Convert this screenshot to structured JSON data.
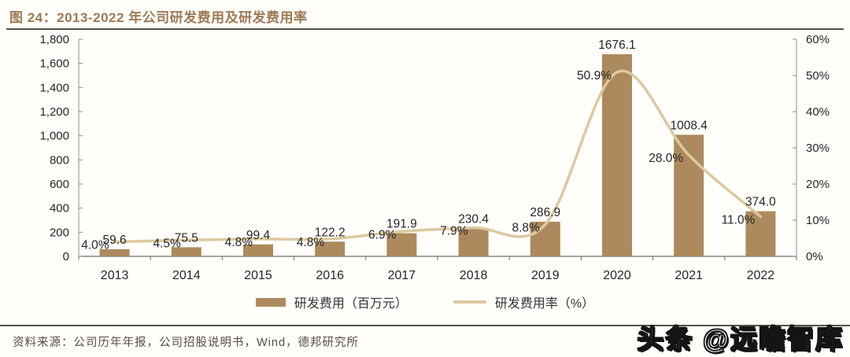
{
  "header": {
    "title": "图 24：2013-2022 年公司研发费用及研发费用率"
  },
  "chart_data": {
    "type": "bar",
    "subtype": "combo-bar-line",
    "title": "图 24：2013-2022 年公司研发费用及研发费用率",
    "categories": [
      "2013",
      "2014",
      "2015",
      "2016",
      "2017",
      "2018",
      "2019",
      "2020",
      "2021",
      "2022"
    ],
    "series": [
      {
        "name": "研发费用（百万元）",
        "type": "bar",
        "axis": "left",
        "values": [
          59.6,
          75.5,
          99.4,
          122.2,
          191.9,
          230.4,
          286.9,
          1676.1,
          1008.4,
          374.0
        ],
        "labels": [
          "59.6",
          "75.5",
          "99.4",
          "122.2",
          "191.9",
          "230.4",
          "286.9",
          "1676.1",
          "1008.4",
          "374.0"
        ],
        "color": "#AC8A5D"
      },
      {
        "name": "研发费用率（%）",
        "type": "line",
        "axis": "right",
        "values": [
          4.0,
          4.5,
          4.8,
          4.8,
          6.9,
          7.9,
          8.8,
          50.9,
          28.0,
          11.0
        ],
        "labels": [
          "4.0%",
          "4.5%",
          "4.8%",
          "4.8%",
          "6.9%",
          "7.9%",
          "8.8%",
          "50.9%",
          "28.0%",
          "11.0%"
        ],
        "color": "#DCC9A0"
      }
    ],
    "left_axis": {
      "min": 0,
      "max": 1800,
      "step": 200,
      "tick_labels": [
        "0",
        "200",
        "400",
        "600",
        "800",
        "1,000",
        "1,200",
        "1,400",
        "1,600",
        "1,800"
      ]
    },
    "right_axis": {
      "min": 0,
      "max": 60,
      "step": 10,
      "tick_labels": [
        "0%",
        "10%",
        "20%",
        "30%",
        "40%",
        "50%",
        "60%"
      ]
    },
    "grid": false,
    "legend_position": "bottom"
  },
  "legend": {
    "bar_label": "研发费用（百万元）",
    "line_label": "研发费用率（%）"
  },
  "footer": {
    "source": "资料来源：公司历年年报，公司招股说明书，Wind，德邦研究所"
  },
  "watermark": {
    "text": "头条 @远瞻智库"
  },
  "colors": {
    "bar": "#AC8A5D",
    "line": "#DCC9A0",
    "title": "#9D7954",
    "rule": "#56504A",
    "axis": "#8C8C8C",
    "axis-dark": "#6E6E6E",
    "label": "#262626",
    "footer": "#554C41",
    "bg": "#FFFEFB"
  }
}
